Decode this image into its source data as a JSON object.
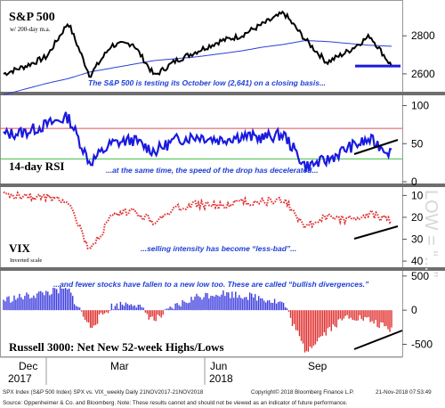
{
  "panels": {
    "spx": {
      "title": "S&P 500",
      "subtitle": "w/ 200-day m.a.",
      "annotation": "The S&P 500 is testing its October low (2,641) on a closing basis...",
      "ticks": [
        "2800",
        "2600"
      ]
    },
    "rsi": {
      "title": "14-day RSI",
      "annotation": "...at the same time, the speed of the drop has decelerated...",
      "ticks": [
        "100",
        "50",
        "0"
      ]
    },
    "vix": {
      "title": "VIX",
      "subtitle": "Inverted scale",
      "annotation": "...selling intensity has become “less-bad”...",
      "ticks": [
        "10",
        "20",
        "30",
        "40"
      ],
      "watermark": "LOW = “...”"
    },
    "breadth": {
      "title": "Russell 3000: Net New 52-week Highs/Lows",
      "annotation": "...and fewer stocks have fallen to a new low too.  These are called “bullish divergences.”",
      "ticks": [
        "500",
        "0",
        "-500"
      ]
    }
  },
  "xaxis": {
    "months": [
      "Dec",
      "Mar",
      "Jun",
      "Sep"
    ],
    "years": [
      "2017",
      "2018"
    ]
  },
  "footer": {
    "left": "SPX Index (S&P 500 Index) SPX vs. VIX_weekly  Daily 21NOV2017-21NOV2018",
    "center": "Copyright© 2018 Bloomberg Finance L.P.",
    "right": "21-Nov-2018 07:53:49"
  },
  "source": "Source:  Oppenheimer & Co. and Bloomberg.  Note:  These results cannot and should not be viewed as an indicator of future performance.",
  "colors": {
    "price": "#000000",
    "ma": "#2b3fd6",
    "annotation": "#1f3fd6",
    "rsi": "#1a1adf",
    "rsi_upper": "#e05050",
    "rsi_lower": "#40c040",
    "vix": "#e03030",
    "breadth_pos": "#3a3adf",
    "breadth_neg": "#e03030",
    "support": "#1a1adf",
    "divider": "#6e6e6e"
  },
  "chart_data": [
    {
      "type": "line",
      "title": "S&P 500",
      "subtitle": "w/ 200-day m.a.",
      "x": [
        "2017-11",
        "2017-12",
        "2018-01",
        "2018-01",
        "2018-02",
        "2018-02",
        "2018-03",
        "2018-04",
        "2018-04",
        "2018-05",
        "2018-06",
        "2018-07",
        "2018-08",
        "2018-09",
        "2018-10",
        "2018-10",
        "2018-10",
        "2018-11",
        "2018-11"
      ],
      "series": [
        {
          "values": [
            2600,
            2640,
            2690,
            2870,
            2590,
            2750,
            2760,
            2590,
            2670,
            2720,
            2770,
            2800,
            2860,
            2920,
            2780,
            2660,
            2720,
            2800,
            2641
          ]
        }
      ],
      "ma_values": [
        2490,
        2520,
        2550,
        2575,
        2610,
        2630,
        2650,
        2670,
        2680,
        2690,
        2705,
        2720,
        2740,
        2755,
        2775,
        2770,
        2760,
        2750,
        2745
      ],
      "support_level": 2641,
      "ylim": [
        2520,
        2960
      ],
      "ticks": [
        2800,
        2600
      ]
    },
    {
      "type": "line",
      "title": "14-day RSI",
      "x": [
        "2017-11",
        "2017-12",
        "2018-01",
        "2018-01",
        "2018-02",
        "2018-02",
        "2018-03",
        "2018-04",
        "2018-04",
        "2018-05",
        "2018-06",
        "2018-07",
        "2018-08",
        "2018-09",
        "2018-10",
        "2018-10",
        "2018-10",
        "2018-11",
        "2018-11"
      ],
      "series": [
        {
          "values": [
            62,
            65,
            75,
            85,
            25,
            50,
            55,
            40,
            55,
            60,
            55,
            60,
            58,
            62,
            20,
            28,
            45,
            55,
            38
          ]
        }
      ],
      "reference_lines": [
        70,
        30
      ],
      "ylim": [
        0,
        110
      ],
      "ticks": [
        100,
        50,
        0
      ]
    },
    {
      "type": "line",
      "title": "VIX",
      "subtitle": "Inverted scale",
      "x": [
        "2017-11",
        "2017-12",
        "2018-01",
        "2018-01",
        "2018-02",
        "2018-02",
        "2018-03",
        "2018-04",
        "2018-04",
        "2018-05",
        "2018-06",
        "2018-07",
        "2018-08",
        "2018-09",
        "2018-10",
        "2018-10",
        "2018-10",
        "2018-11",
        "2018-11"
      ],
      "series": [
        {
          "values": [
            10,
            10,
            11,
            12,
            36,
            20,
            17,
            22,
            16,
            14,
            15,
            13,
            13,
            12,
            24,
            20,
            21,
            18,
            22
          ]
        }
      ],
      "inverted": true,
      "ylim": [
        7,
        42
      ],
      "ticks": [
        10,
        20,
        30,
        40
      ]
    },
    {
      "type": "bar",
      "title": "Russell 3000: Net New 52-week Highs/Lows",
      "x": [
        "2017-11",
        "2017-12",
        "2018-01",
        "2018-01",
        "2018-02",
        "2018-02",
        "2018-03",
        "2018-04",
        "2018-04",
        "2018-05",
        "2018-06",
        "2018-07",
        "2018-08",
        "2018-09",
        "2018-10",
        "2018-10",
        "2018-10",
        "2018-11",
        "2018-11"
      ],
      "values": [
        150,
        200,
        260,
        300,
        -250,
        50,
        120,
        -150,
        60,
        200,
        250,
        220,
        180,
        100,
        -600,
        -300,
        -80,
        -150,
        -300
      ],
      "ylim": [
        -650,
        550
      ],
      "ticks": [
        500,
        0,
        -500
      ]
    }
  ]
}
